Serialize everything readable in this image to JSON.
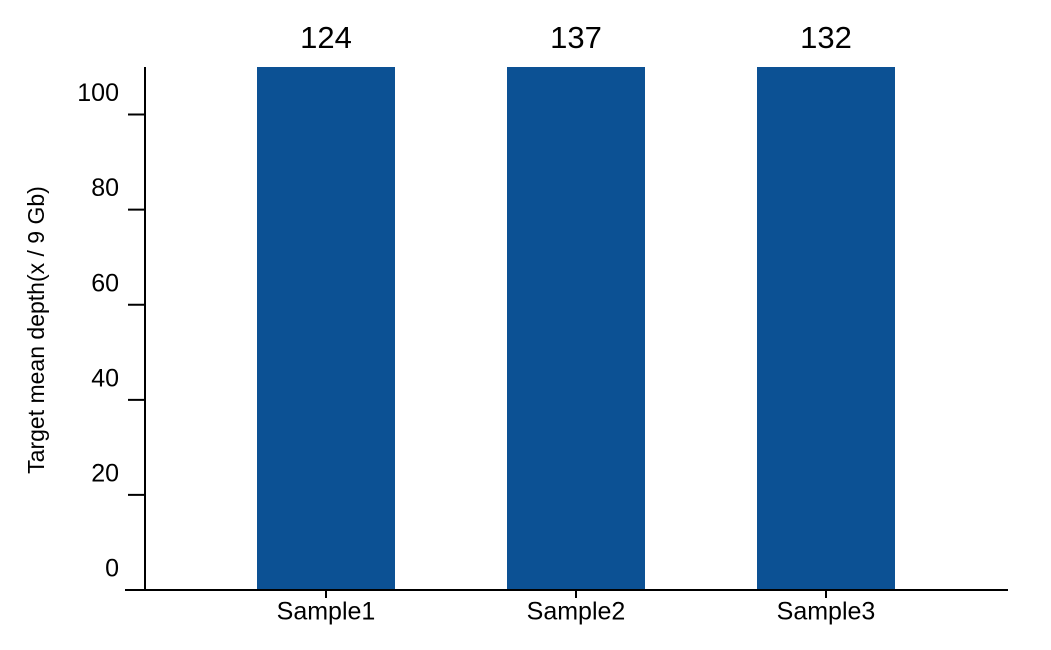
{
  "chart_data": {
    "type": "bar",
    "y_label": "Target mean depth(x / 9 Gb)",
    "categories": [
      "Sample1",
      "Sample2",
      "Sample3"
    ],
    "values": [
      124,
      137,
      132
    ],
    "color": "#0c5194",
    "ylim": [
      0,
      110
    ],
    "yticks": [
      0,
      20,
      40,
      60,
      80,
      100
    ],
    "grid": false
  }
}
